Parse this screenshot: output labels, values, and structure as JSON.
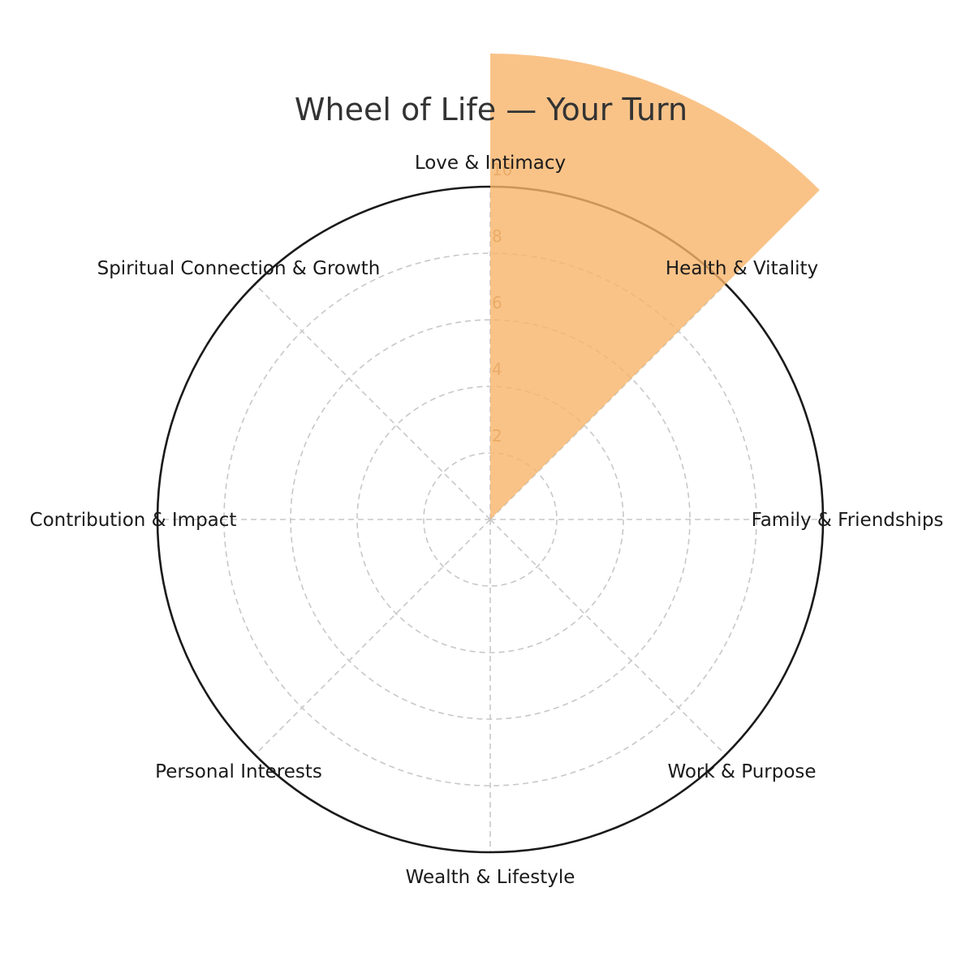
{
  "chart_data": {
    "type": "polar-bar",
    "title": "Wheel of Life — Your Turn",
    "categories": [
      "Love & Intimacy",
      "Health & Vitality",
      "Family & Friendships",
      "Work & Purpose",
      "Wealth & Lifestyle",
      "Personal Interests",
      "Contribution & Impact",
      "Spiritual Connection & Growth"
    ],
    "values": [
      14,
      null,
      null,
      null,
      null,
      null,
      null,
      null
    ],
    "rlim": [
      0,
      10
    ],
    "r_ticks": [
      "2",
      "4",
      "6",
      "8",
      "10"
    ],
    "grid": true,
    "colors": {
      "bar": "#f7b46a",
      "bar_opacity": 0.8,
      "grid": "#c8c8c8",
      "outer_ring": "#1a1a1a",
      "tick_text": "#b0865a"
    }
  }
}
